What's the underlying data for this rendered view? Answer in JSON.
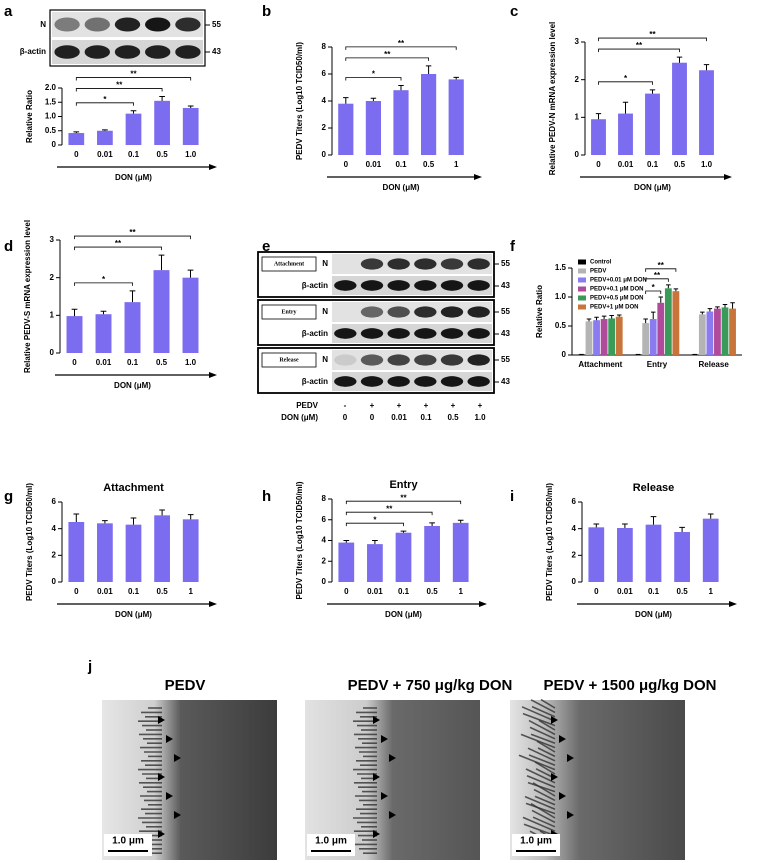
{
  "chart_data": [
    {
      "panel": "a",
      "type": "bar",
      "y_label": "Relative Ratio",
      "x_label": "DON (μM)",
      "categories": [
        "0",
        "0.01",
        "0.1",
        "0.5",
        "1.0"
      ],
      "values": [
        0.42,
        0.5,
        1.1,
        1.55,
        1.3
      ],
      "errors": [
        0.04,
        0.03,
        0.1,
        0.15,
        0.07
      ],
      "color": "#7b6cf0",
      "ylim": [
        0,
        2
      ],
      "yticks": [
        0,
        0.5,
        {
          "value": 1,
          "label": "1.0"
        },
        1.5,
        {
          "value": 2,
          "label": "2.0"
        }
      ],
      "brackets": [
        {
          "label": "*",
          "between": [
            "0",
            "0.1"
          ]
        },
        {
          "label": "**",
          "between": [
            "0",
            "0.5"
          ]
        },
        {
          "label": "**",
          "between": [
            "0",
            "1.0"
          ]
        }
      ]
    },
    {
      "panel": "b",
      "type": "bar",
      "y_label": "PEDV Titers (Log10 TCID50/ml)",
      "x_label": "DON (μM)",
      "categories": [
        "0",
        "0.01",
        "0.1",
        "0.5",
        "1"
      ],
      "values": [
        3.8,
        4.0,
        4.8,
        6.0,
        5.6
      ],
      "errors": [
        0.45,
        0.2,
        0.35,
        0.6,
        0.15
      ],
      "color": "#7b6cf0",
      "ylim": [
        0,
        8
      ],
      "yticks": [
        0,
        2,
        4,
        6,
        8
      ],
      "brackets": [
        {
          "label": "*",
          "between": [
            "0",
            "0.1"
          ]
        },
        {
          "label": "**",
          "between": [
            "0",
            "0.5"
          ]
        },
        {
          "label": "**",
          "between": [
            "0",
            "1"
          ]
        }
      ]
    },
    {
      "panel": "c",
      "type": "bar",
      "y_label": "Relative PEDV-N mRNA expression level",
      "x_label": "DON (μM)",
      "categories": [
        "0",
        "0.01",
        "0.1",
        "0.5",
        "1.0"
      ],
      "values": [
        0.95,
        1.1,
        1.63,
        2.45,
        2.25
      ],
      "errors": [
        0.15,
        0.3,
        0.1,
        0.15,
        0.15
      ],
      "color": "#7b6cf0",
      "ylim": [
        0,
        3
      ],
      "yticks": [
        0,
        1,
        2,
        3
      ],
      "brackets": [
        {
          "label": "*",
          "between": [
            "0",
            "0.1"
          ]
        },
        {
          "label": "**",
          "between": [
            "0",
            "0.5"
          ]
        },
        {
          "label": "**",
          "between": [
            "0",
            "1.0"
          ]
        }
      ]
    },
    {
      "panel": "d",
      "type": "bar",
      "y_label": "Relative PEDV-S mRNA expression level",
      "x_label": "DON (μM)",
      "categories": [
        "0",
        "0.01",
        "0.1",
        "0.5",
        "1.0"
      ],
      "values": [
        0.98,
        1.03,
        1.35,
        2.2,
        2.0
      ],
      "errors": [
        0.18,
        0.08,
        0.3,
        0.4,
        0.2
      ],
      "color": "#7b6cf0",
      "ylim": [
        0,
        3
      ],
      "yticks": [
        0,
        1,
        2,
        3
      ],
      "brackets": [
        {
          "label": "*",
          "between": [
            "0",
            "0.1"
          ]
        },
        {
          "label": "**",
          "between": [
            "0",
            "0.5"
          ]
        },
        {
          "label": "**",
          "between": [
            "0",
            "1.0"
          ]
        }
      ]
    },
    {
      "panel": "f",
      "type": "grouped_bar",
      "y_label": "Relative Ratio",
      "categories": [
        "Attachment",
        "Entry",
        "Release"
      ],
      "ylim": [
        0,
        1.5
      ],
      "yticks": [
        0,
        0.5,
        {
          "value": 1,
          "label": "1.0"
        },
        1.5
      ],
      "series": [
        {
          "name": "Control",
          "color": "#000000",
          "values": [
            0.01,
            0.01,
            0.01
          ],
          "errors": [
            0,
            0,
            0
          ]
        },
        {
          "name": "PEDV",
          "color": "#b4b4b4",
          "values": [
            0.58,
            0.55,
            0.7
          ],
          "errors": [
            0.04,
            0.07,
            0.04
          ]
        },
        {
          "name": "PEDV+0.01 μM DON",
          "color": "#8a7cf0",
          "values": [
            0.6,
            0.62,
            0.75
          ],
          "errors": [
            0.05,
            0.12,
            0.05
          ]
        },
        {
          "name": "PEDV+0.1 μM DON",
          "color": "#b04a9a",
          "values": [
            0.62,
            0.9,
            0.8
          ],
          "errors": [
            0.05,
            0.1,
            0.03
          ]
        },
        {
          "name": "PEDV+0.5 μM DON",
          "color": "#3a9a5a",
          "values": [
            0.63,
            1.15,
            0.82
          ],
          "errors": [
            0.05,
            0.06,
            0.05
          ]
        },
        {
          "name": "PEDV+1 μM DON",
          "color": "#c8743a",
          "values": [
            0.66,
            1.1,
            0.8
          ],
          "errors": [
            0.03,
            0.04,
            0.1
          ]
        }
      ],
      "brackets": [
        {
          "label": "*",
          "category": "Entry",
          "between": [
            "PEDV",
            "PEDV+0.1 μM DON"
          ]
        },
        {
          "label": "**",
          "category": "Entry",
          "between": [
            "PEDV",
            "PEDV+0.5 μM DON"
          ]
        },
        {
          "label": "**",
          "category": "Entry",
          "between": [
            "PEDV",
            "PEDV+1 μM DON"
          ]
        }
      ]
    },
    {
      "panel": "g",
      "type": "bar",
      "title": "Attachment",
      "y_label": "PEDV Titers (Log10 TCID50/ml)",
      "x_label": "DON (μM)",
      "categories": [
        "0",
        "0.01",
        "0.1",
        "0.5",
        "1"
      ],
      "values": [
        4.5,
        4.4,
        4.3,
        5.0,
        4.7
      ],
      "errors": [
        0.6,
        0.2,
        0.5,
        0.4,
        0.35
      ],
      "color": "#7b6cf0",
      "ylim": [
        0,
        6
      ],
      "yticks": [
        0,
        2,
        4,
        6
      ]
    },
    {
      "panel": "h",
      "type": "bar",
      "title": "Entry",
      "y_label": "PEDV Titers (Log10 TCID50/ml)",
      "x_label": "DON (μM)",
      "categories": [
        "0",
        "0.01",
        "0.1",
        "0.5",
        "1"
      ],
      "values": [
        3.8,
        3.65,
        4.75,
        5.4,
        5.7
      ],
      "errors": [
        0.2,
        0.35,
        0.15,
        0.3,
        0.25
      ],
      "color": "#7b6cf0",
      "ylim": [
        0,
        8
      ],
      "yticks": [
        0,
        2,
        4,
        6,
        8
      ],
      "brackets": [
        {
          "label": "*",
          "between": [
            "0",
            "0.1"
          ]
        },
        {
          "label": "**",
          "between": [
            "0",
            "0.5"
          ]
        },
        {
          "label": "**",
          "between": [
            "0",
            "1"
          ]
        }
      ]
    },
    {
      "panel": "i",
      "type": "bar",
      "title": "Release",
      "y_label": "PEDV Titers (Log10 TCID50/ml)",
      "x_label": "DON (μM)",
      "categories": [
        "0",
        "0.01",
        "0.1",
        "0.5",
        "1"
      ],
      "values": [
        4.1,
        4.05,
        4.3,
        3.75,
        4.75
      ],
      "errors": [
        0.25,
        0.3,
        0.6,
        0.35,
        0.35
      ],
      "color": "#7b6cf0",
      "ylim": [
        0,
        6
      ],
      "yticks": [
        0,
        2,
        4,
        6
      ]
    }
  ],
  "blots": {
    "a": {
      "rows": [
        {
          "label": "N",
          "size": "55"
        },
        {
          "label": "β-actin",
          "size": "43"
        }
      ]
    },
    "e": {
      "panel": "e",
      "groups": [
        {
          "name": "Attachment",
          "rows": [
            {
              "label": "N",
              "size": "55"
            },
            {
              "label": "β-actin",
              "size": "43"
            }
          ]
        },
        {
          "name": "Entry",
          "rows": [
            {
              "label": "N",
              "size": "55"
            },
            {
              "label": "β-actin",
              "size": "43"
            }
          ]
        },
        {
          "name": "Release",
          "rows": [
            {
              "label": "N",
              "size": "55"
            },
            {
              "label": "β-actin",
              "size": "43"
            }
          ]
        }
      ],
      "treatments": [
        {
          "label": "PEDV",
          "values": [
            "-",
            "+",
            "+",
            "+",
            "+",
            "+"
          ]
        },
        {
          "label": "DON (μM)",
          "values": [
            "0",
            "0",
            "0.01",
            "0.1",
            "0.5",
            "1.0"
          ]
        }
      ]
    }
  },
  "micrographs": {
    "panel": "j",
    "images": [
      {
        "title": "PEDV",
        "scale": "1.0 μm"
      },
      {
        "title": "PEDV + 750 μg/kg DON",
        "scale": "1.0 μm"
      },
      {
        "title": "PEDV + 1500 μg/kg DON",
        "scale": "1.0 μm"
      }
    ]
  }
}
